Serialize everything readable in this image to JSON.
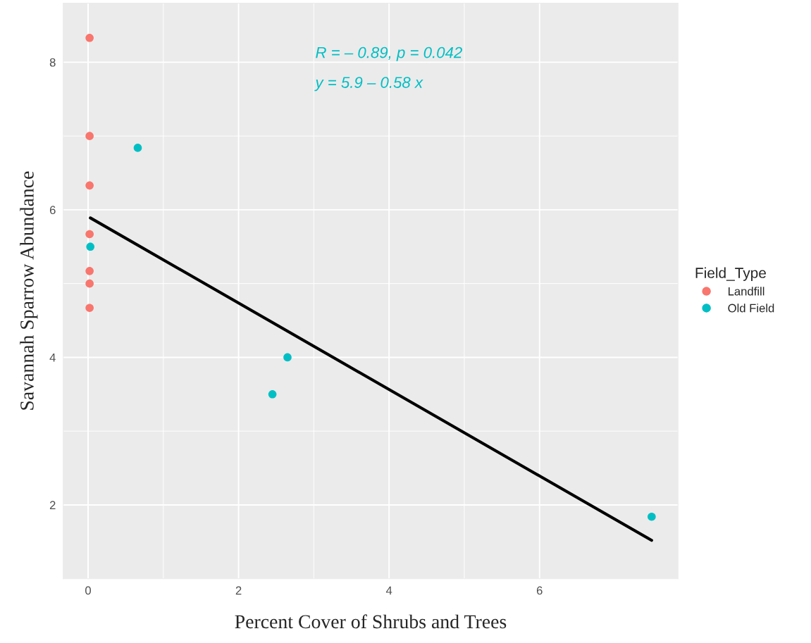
{
  "chart_data": {
    "type": "scatter",
    "xlabel": "Percent Cover of Shrubs and Trees",
    "ylabel": "Savannah Sparrow Abundance",
    "legend_title": "Field_Type",
    "series": [
      {
        "name": "Landfill",
        "marker": "circle",
        "color": "#f8766d",
        "x": [
          0.02,
          0.02,
          0.02,
          0.02,
          0.02,
          0.02,
          0.02
        ],
        "values": [
          8.33,
          7.0,
          6.33,
          5.67,
          5.17,
          5.0,
          4.67
        ]
      },
      {
        "name": "Old Field",
        "marker": "circle",
        "color": "#00bfc4",
        "x": [
          0.66,
          0.03,
          2.65,
          2.45,
          7.49
        ],
        "values": [
          6.84,
          5.5,
          4.0,
          3.5,
          1.84
        ]
      },
      {
        "type": "line",
        "color": "#000000",
        "x": [
          0.03,
          7.49
        ],
        "values": [
          5.89,
          1.52
        ]
      }
    ],
    "annotations": [
      "R = – 0.89, p = 0.042",
      "y = 5.9 – 0.58 x"
    ],
    "xlim": [
      -0.33,
      7.84
    ],
    "ylim": [
      1.0,
      8.8
    ],
    "xticks": [
      0,
      2,
      4,
      6
    ],
    "yticks": [
      2,
      4,
      6,
      8
    ],
    "grid": true,
    "legend": "right"
  }
}
